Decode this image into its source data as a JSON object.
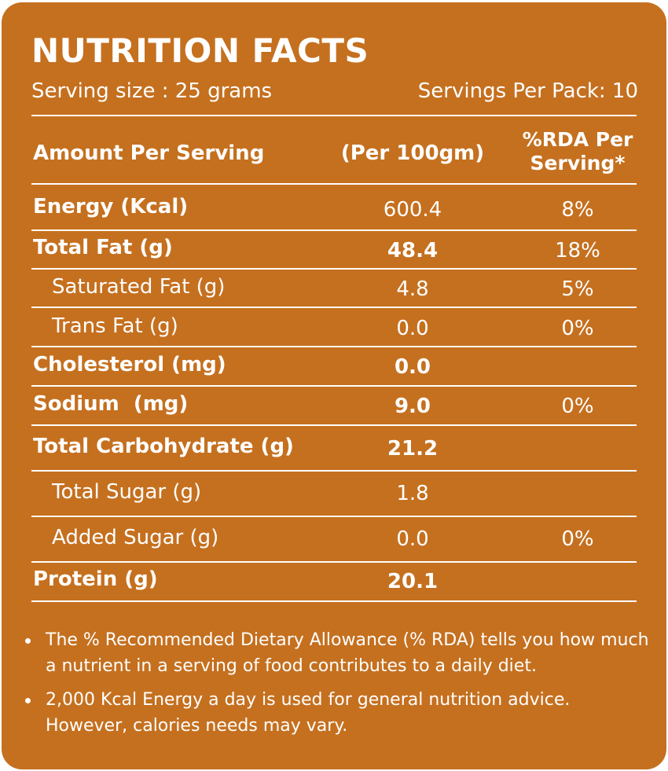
{
  "title": "NUTRITION FACTS",
  "serving_size": "Serving size : 25 grams",
  "servings_per_pack": "Servings Per Pack: 10",
  "header": {
    "col1": "Amount Per Serving",
    "col2": "(Per 100gm)",
    "col3": "%RDA Per Serving*"
  },
  "rows": [
    {
      "name": "Energy (Kcal)",
      "per100": "600.4",
      "rda": "8%"
    },
    {
      "name": "Total Fat (g)",
      "per100": "48.4",
      "rda": "18%"
    },
    {
      "name": "Saturated Fat (g)",
      "per100": "4.8",
      "rda": "5%"
    },
    {
      "name": "Trans Fat (g)",
      "per100": "0.0",
      "rda": "0%"
    },
    {
      "name": "Cholesterol (mg)",
      "per100": "0.0",
      "rda": ""
    },
    {
      "name": "Sodium  (mg)",
      "per100": "9.0",
      "rda": "0%"
    },
    {
      "name": "Total Carbohydrate (g)",
      "per100": "21.2",
      "rda": ""
    },
    {
      "name": "Total Sugar (g)",
      "per100": "1.8",
      "rda": ""
    },
    {
      "name": "Added Sugar (g)",
      "per100": "0.0",
      "rda": "0%"
    },
    {
      "name": "Protein (g)",
      "per100": "20.1",
      "rda": ""
    }
  ],
  "notes": [
    "The % Recommended Dietary Allowance (% RDA) tells you how much a nutrient in a serving of food contributes to a daily diet.",
    "2,000 Kcal Energy a day is used for general nutrition advice. However, calories needs may vary."
  ],
  "colors": {
    "background": "#c5701f",
    "text": "#ffffff"
  }
}
